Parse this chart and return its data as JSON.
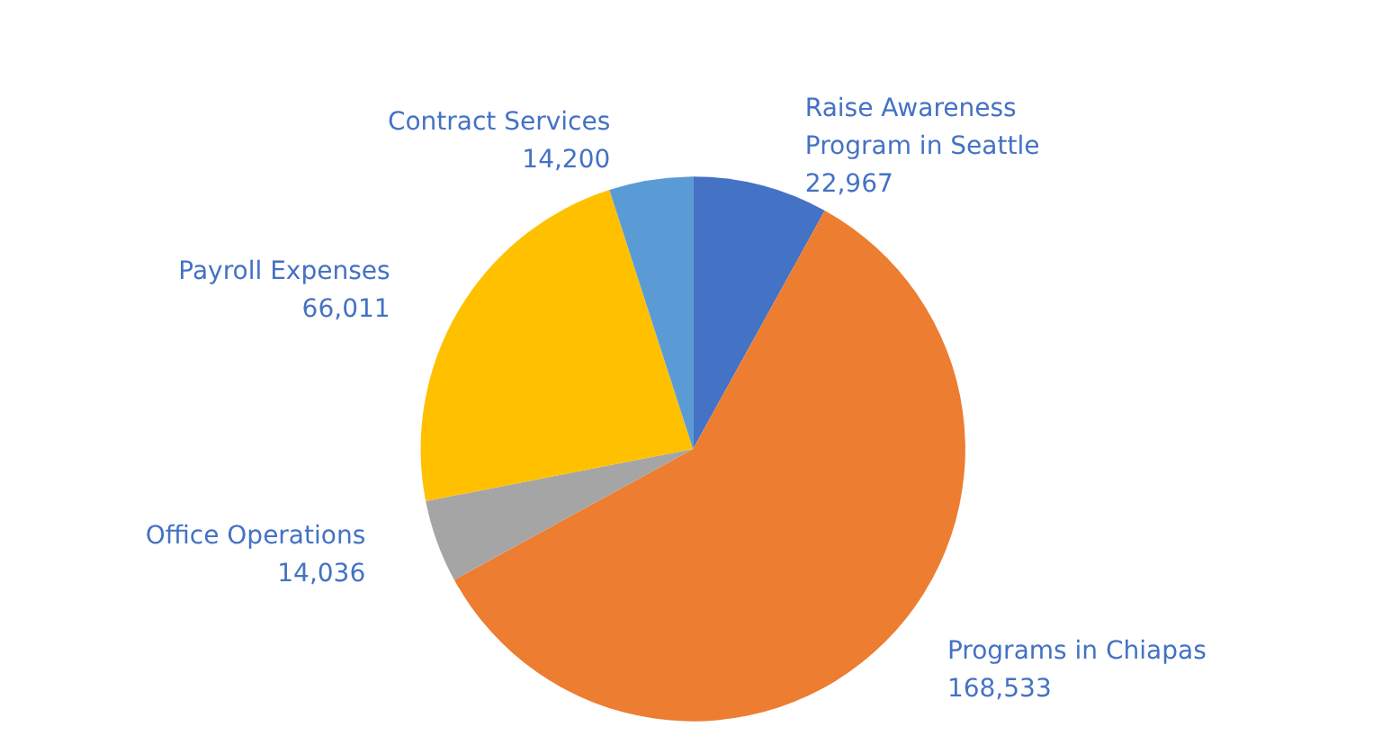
{
  "chart_data": {
    "type": "pie",
    "categories": [
      "Raise Awareness Program in Seattle",
      "Programs in Chiapas",
      "Office Operations",
      "Payroll Expenses",
      "Contract Services"
    ],
    "values": [
      22967,
      168533,
      14036,
      66011,
      14200
    ],
    "colors": [
      "#4472c4",
      "#ed7d31",
      "#a5a5a5",
      "#ffc000",
      "#5b9bd5"
    ],
    "value_labels": [
      "22,967",
      "168,533",
      "14,036",
      "66,011",
      "14,200"
    ],
    "legend": false
  }
}
